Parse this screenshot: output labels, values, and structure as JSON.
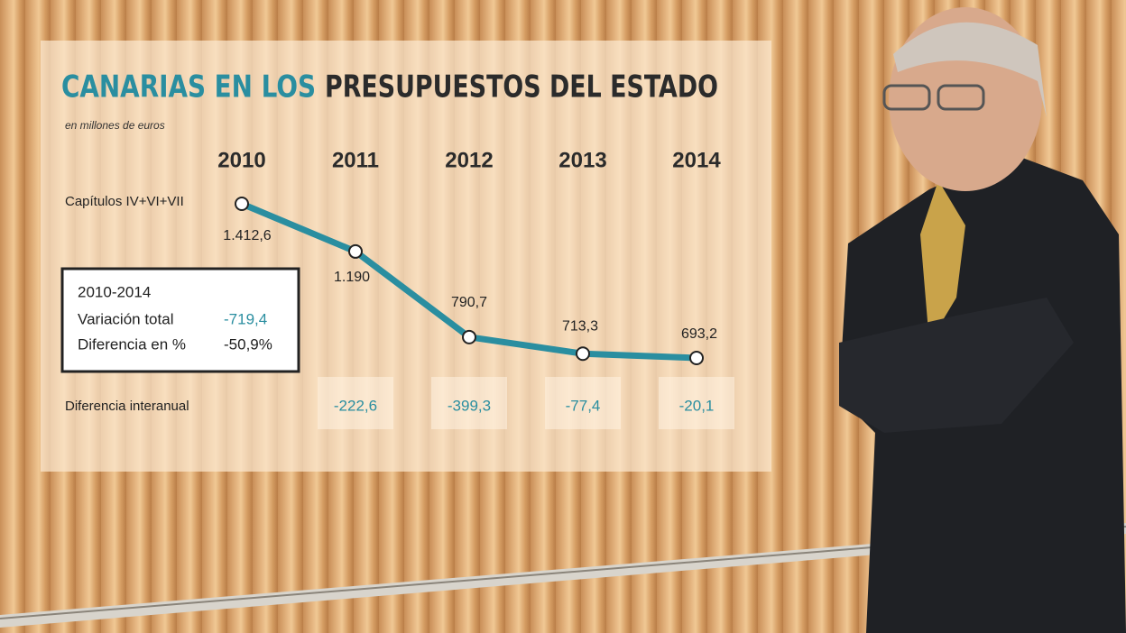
{
  "chart_data": {
    "type": "line",
    "title_highlight": "CANARIAS EN LOS",
    "title": "PRESUPUESTOS DEL ESTADO",
    "subtitle": "en millones de euros",
    "categories": [
      "2010",
      "2011",
      "2012",
      "2013",
      "2014"
    ],
    "series": [
      {
        "name": "Capítulos IV+VI+VII",
        "color": "#2a8ea0",
        "values": [
          1412.6,
          1190,
          790.7,
          713.3,
          693.2
        ],
        "value_labels": [
          "1.412,6",
          "1.190",
          "790,7",
          "713,3",
          "693,2"
        ]
      }
    ],
    "annual_difference": {
      "name": "Diferencia interanual",
      "values": [
        null,
        -222.6,
        -399.3,
        -77.4,
        -20.1
      ],
      "value_labels": [
        null,
        "-222,6",
        "-399,3",
        "-77,4",
        "-20,1"
      ]
    },
    "summary": {
      "title": "2010-2014",
      "rows": [
        {
          "label": "Variación total",
          "value": -719.4,
          "value_label": "-719,4"
        },
        {
          "label": "Diferencia en %",
          "value": -50.9,
          "value_label": "-50,9%"
        }
      ]
    }
  }
}
